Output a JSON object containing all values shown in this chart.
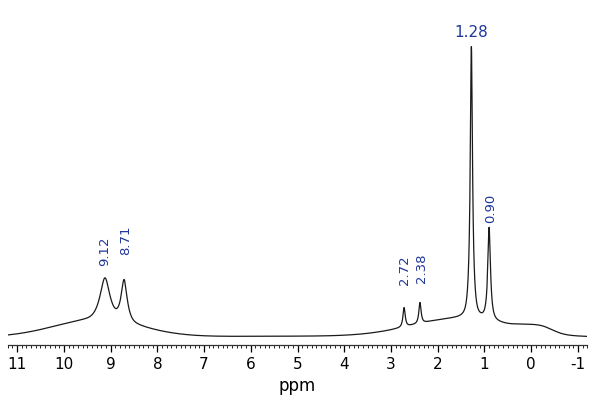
{
  "x_min": -1,
  "x_max": 11,
  "x_ticks": [
    11,
    10,
    9,
    8,
    7,
    6,
    5,
    4,
    3,
    2,
    1,
    0,
    -1
  ],
  "xlabel": "ppm",
  "xlabel_fontsize": 12,
  "tick_label_fontsize": 11,
  "line_color": "#1a1a1a",
  "label_color": "#1f3799",
  "background_color": "#ffffff"
}
